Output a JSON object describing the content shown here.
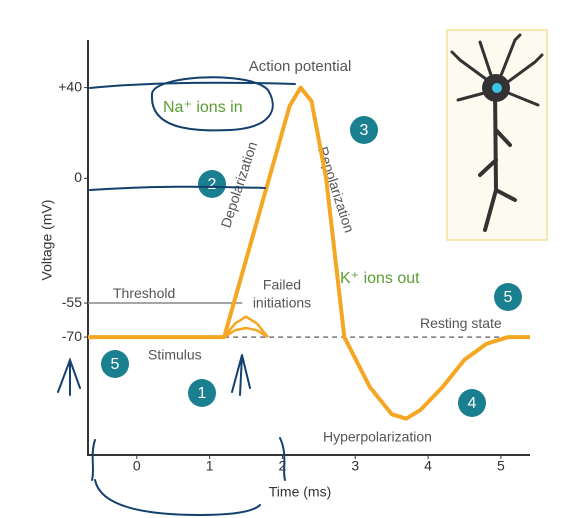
{
  "chart_data": {
    "type": "line",
    "title": "Action potential",
    "y_label": "Voltage (mV)",
    "x_label": "Time (ms)",
    "xlim": [
      -0.67,
      5.4
    ],
    "ylim": [
      -122,
      61
    ],
    "xticks": [
      0,
      1,
      2,
      3,
      4,
      5
    ],
    "yticks": [
      {
        "value": 40,
        "label": "+40"
      },
      0,
      -55,
      -70
    ],
    "color": "#f5a623",
    "x": [
      -0.67,
      1.2,
      1.5,
      1.8,
      2.1,
      2.25,
      2.4,
      2.6,
      2.85,
      3.2,
      3.5,
      3.7,
      3.9,
      4.2,
      4.5,
      4.8,
      5.1,
      5.4
    ],
    "values": [
      -70,
      -70,
      -36,
      -2,
      32,
      40,
      34,
      0,
      -70,
      -92,
      -104,
      -106,
      -102,
      -92,
      -80,
      -73,
      -70,
      -70
    ],
    "failed_initiations": [
      {
        "x": [
          1.2,
          1.35,
          1.5,
          1.65,
          1.8
        ],
        "values": [
          -70,
          -64,
          -61,
          -64,
          -70
        ]
      },
      {
        "x": [
          1.2,
          1.35,
          1.5,
          1.65,
          1.8
        ],
        "values": [
          -70,
          -67,
          -66,
          -67,
          -70
        ]
      }
    ],
    "threshold": {
      "label": "Threshold",
      "value": -55
    },
    "resting": {
      "label": "Resting state",
      "value": -70
    },
    "annotations": [
      "Na⁺ ions in",
      "Depolarization",
      "Repolarization",
      "K⁺ ions out",
      "Failed",
      "initiations",
      "Stimulus",
      "Hyperpolarization"
    ],
    "step_markers": [
      "2",
      "3",
      "5",
      "5",
      "1",
      "4"
    ]
  }
}
